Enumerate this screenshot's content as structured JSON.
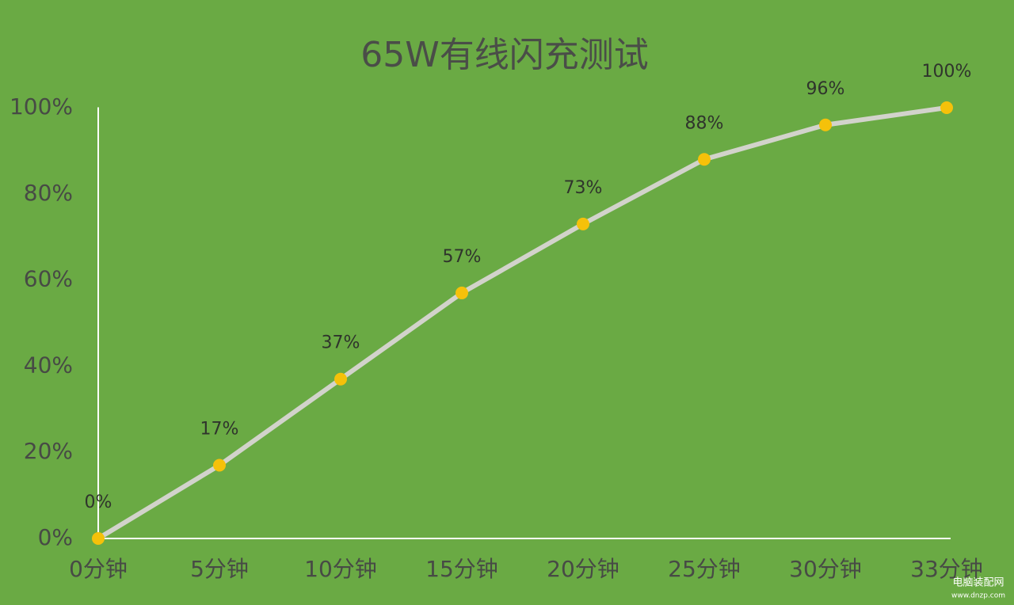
{
  "chart_data": {
    "type": "line",
    "title": "65W有线闪充测试",
    "categories": [
      "0分钟",
      "5分钟",
      "10分钟",
      "15分钟",
      "20分钟",
      "25分钟",
      "30分钟",
      "33分钟"
    ],
    "values": [
      0,
      17,
      37,
      57,
      73,
      88,
      96,
      100
    ],
    "value_labels": [
      "0%",
      "17%",
      "37%",
      "57%",
      "73%",
      "88%",
      "96%",
      "100%"
    ],
    "color": "#d2d3cb",
    "marker_color": "#f5c10a",
    "ylim": [
      0,
      100
    ],
    "yticks": [
      {
        "value": 0,
        "label": "0%"
      },
      {
        "value": 20,
        "label": "20%"
      },
      {
        "value": 40,
        "label": "40%"
      },
      {
        "value": 60,
        "label": "60%"
      },
      {
        "value": 80,
        "label": "80%"
      },
      {
        "value": 100,
        "label": "100%"
      }
    ]
  },
  "watermark": {
    "name": "电脑装配网",
    "url": "www.dnzp.com"
  }
}
